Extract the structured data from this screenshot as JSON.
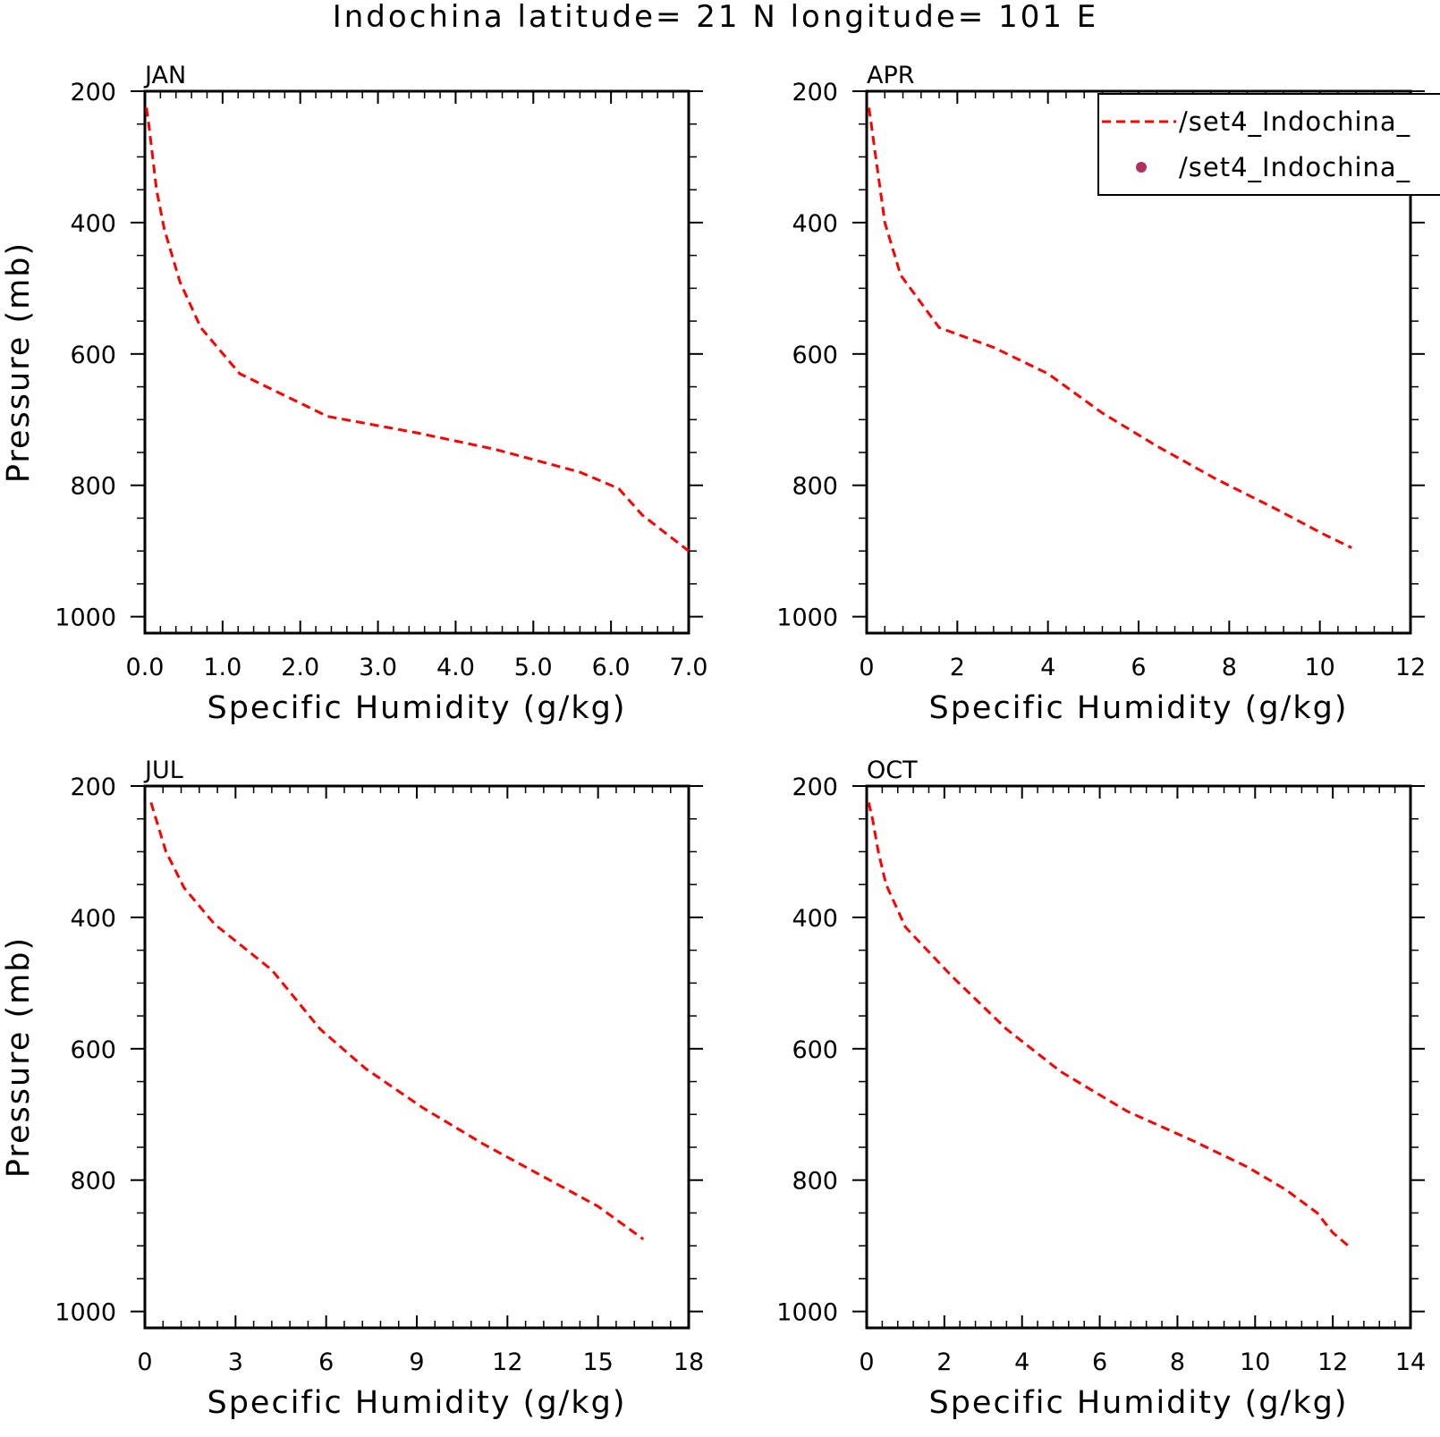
{
  "figure": {
    "title": "Indochina  latitude= 21 N longitude= 101 E",
    "legend": {
      "placement": "top-right",
      "entries": [
        {
          "label": "/set4_Indochina_",
          "style": "dashed-line",
          "color": "#ff0000"
        },
        {
          "label": "/set4_Indochina_",
          "style": "dot",
          "color": "#b03060"
        }
      ]
    },
    "line_color": "#ff0000"
  },
  "chart_data": [
    {
      "type": "line",
      "title": "JAN",
      "xlabel": "Specific Humidity (g/kg)",
      "ylabel": "Pressure (mb)",
      "xlim": [
        0,
        7
      ],
      "ylim": [
        200,
        1025
      ],
      "y_reversed": true,
      "xticks": [
        0,
        1,
        2,
        3,
        4,
        5,
        6,
        7
      ],
      "xtick_labels": [
        "0.0",
        "1.0",
        "2.0",
        "3.0",
        "4.0",
        "5.0",
        "6.0",
        "7.0"
      ],
      "yticks": [
        200,
        400,
        600,
        800,
        1000
      ],
      "ytick_labels": [
        "200",
        "400",
        "600",
        "800",
        "1000"
      ],
      "series": [
        {
          "style": "dashed",
          "x": [
            0.02,
            0.05,
            0.1,
            0.15,
            0.25,
            0.45,
            0.72,
            1.22,
            2.35,
            3.5,
            4.5,
            5.6,
            6.1,
            6.4,
            7.0
          ],
          "y": [
            225,
            250,
            300,
            350,
            410,
            490,
            560,
            630,
            695,
            720,
            745,
            780,
            805,
            845,
            900
          ]
        }
      ]
    },
    {
      "type": "line",
      "title": "APR",
      "xlabel": "Specific Humidity (g/kg)",
      "ylabel": "",
      "xlim": [
        0,
        12
      ],
      "ylim": [
        200,
        1025
      ],
      "y_reversed": true,
      "xticks": [
        0,
        2,
        4,
        6,
        8,
        10,
        12
      ],
      "xtick_labels": [
        "0",
        "2",
        "4",
        "6",
        "8",
        "10",
        "12"
      ],
      "yticks": [
        200,
        400,
        600,
        800,
        1000
      ],
      "ytick_labels": [
        "200",
        "400",
        "600",
        "800",
        "1000"
      ],
      "series": [
        {
          "style": "dashed",
          "x": [
            0.05,
            0.1,
            0.2,
            0.4,
            0.75,
            1.6,
            2.8,
            4.0,
            5.2,
            6.4,
            7.7,
            9.0,
            10.1,
            10.7
          ],
          "y": [
            225,
            250,
            300,
            400,
            480,
            560,
            590,
            630,
            690,
            740,
            790,
            835,
            875,
            895
          ]
        }
      ]
    },
    {
      "type": "line",
      "title": "JUL",
      "xlabel": "Specific Humidity (g/kg)",
      "ylabel": "Pressure (mb)",
      "xlim": [
        0,
        18
      ],
      "ylim": [
        200,
        1025
      ],
      "y_reversed": true,
      "xticks": [
        0,
        3,
        6,
        9,
        12,
        15,
        18
      ],
      "xtick_labels": [
        "0",
        "3",
        "6",
        "9",
        "12",
        "15",
        "18"
      ],
      "yticks": [
        200,
        400,
        600,
        800,
        1000
      ],
      "ytick_labels": [
        "200",
        "400",
        "600",
        "800",
        "1000"
      ],
      "series": [
        {
          "style": "dashed",
          "x": [
            0.2,
            0.4,
            0.7,
            1.3,
            2.3,
            4.2,
            5.8,
            7.3,
            9.2,
            11.2,
            13.2,
            15.0,
            16.5
          ],
          "y": [
            225,
            255,
            300,
            355,
            410,
            480,
            570,
            630,
            690,
            745,
            795,
            840,
            890
          ]
        }
      ]
    },
    {
      "type": "line",
      "title": "OCT",
      "xlabel": "Specific Humidity (g/kg)",
      "ylabel": "",
      "xlim": [
        0,
        14
      ],
      "ylim": [
        200,
        1025
      ],
      "y_reversed": true,
      "xticks": [
        0,
        2,
        4,
        6,
        8,
        10,
        12,
        14
      ],
      "xtick_labels": [
        "0",
        "2",
        "4",
        "6",
        "8",
        "10",
        "12",
        "14"
      ],
      "yticks": [
        200,
        400,
        600,
        800,
        1000
      ],
      "ytick_labels": [
        "200",
        "400",
        "600",
        "800",
        "1000"
      ],
      "series": [
        {
          "style": "dashed",
          "x": [
            0.05,
            0.15,
            0.3,
            0.5,
            1.0,
            2.2,
            3.6,
            5.0,
            6.7,
            8.4,
            9.8,
            10.8,
            11.6,
            12.0,
            12.4
          ],
          "y": [
            225,
            250,
            300,
            350,
            415,
            490,
            570,
            635,
            695,
            740,
            780,
            815,
            850,
            880,
            900
          ]
        }
      ]
    }
  ]
}
